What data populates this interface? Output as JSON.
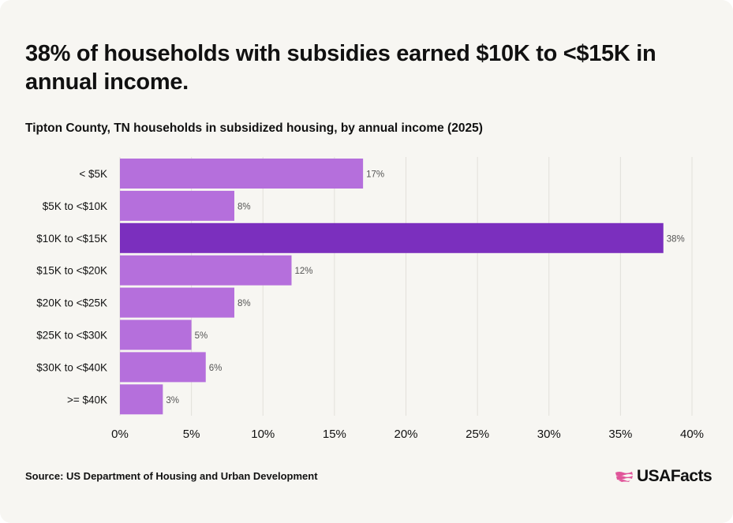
{
  "header": {
    "title": "38% of households with subsidies earned $10K to <$15K in annual income.",
    "subtitle": "Tipton County, TN households in subsidized housing, by annual income (2025)"
  },
  "footer": {
    "source": "Source: US Department of Housing and Urban Development",
    "logo_text": "USAFacts"
  },
  "colors": {
    "bar": "#b56fdc",
    "bar_highlight": "#7b2fbe",
    "grid": "#e2e0da",
    "label": "#555555",
    "logo_mark": "#e0569a"
  },
  "chart_data": {
    "type": "bar",
    "orientation": "horizontal",
    "categories": [
      "< $5K",
      "$5K to <$10K",
      "$10K to <$15K",
      "$15K to <$20K",
      "$20K to <$25K",
      "$25K to <$30K",
      "$30K to <$40K",
      ">= $40K"
    ],
    "values": [
      17,
      8,
      38,
      12,
      8,
      5,
      6,
      3
    ],
    "value_labels": [
      "17%",
      "8%",
      "38%",
      "12%",
      "8%",
      "5%",
      "6%",
      "3%"
    ],
    "highlight_index": 2,
    "xlim": [
      0,
      40
    ],
    "xticks": [
      0,
      5,
      10,
      15,
      20,
      25,
      30,
      35,
      40
    ],
    "xtick_labels": [
      "0%",
      "5%",
      "10%",
      "15%",
      "20%",
      "25%",
      "30%",
      "35%",
      "40%"
    ],
    "grid": true,
    "legend": "none"
  }
}
